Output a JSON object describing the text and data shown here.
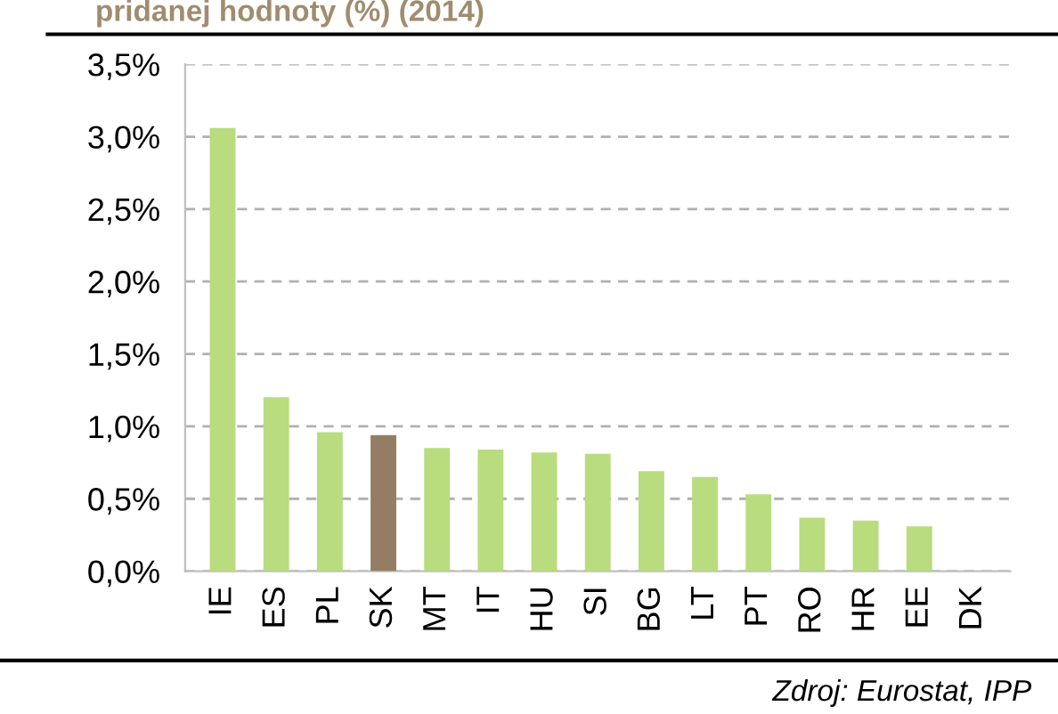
{
  "chart_data": {
    "type": "bar",
    "title": "pridanej hodnoty (%) (2014)",
    "categories": [
      "IE",
      "ES",
      "PL",
      "SK",
      "MT",
      "IT",
      "HU",
      "SI",
      "BG",
      "LT",
      "PT",
      "RO",
      "HR",
      "EE",
      "DK"
    ],
    "values": [
      3.06,
      1.2,
      0.96,
      0.94,
      0.85,
      0.84,
      0.82,
      0.81,
      0.69,
      0.65,
      0.53,
      0.37,
      0.35,
      0.31,
      0.0
    ],
    "colors": [
      "#b8dc7e",
      "#b8dc7e",
      "#b8dc7e",
      "#957d63",
      "#b8dc7e",
      "#b8dc7e",
      "#b8dc7e",
      "#b8dc7e",
      "#b8dc7e",
      "#b8dc7e",
      "#b8dc7e",
      "#b8dc7e",
      "#b8dc7e",
      "#b8dc7e",
      "#b8dc7e"
    ],
    "ylim": [
      0,
      3.5
    ],
    "yticks": [
      {
        "value": 0,
        "label": "0,0%"
      },
      {
        "value": 0.5,
        "label": "0,5%"
      },
      {
        "value": 1,
        "label": "1,0%"
      },
      {
        "value": 1.5,
        "label": "1,5%"
      },
      {
        "value": 2,
        "label": "2,0%"
      },
      {
        "value": 2.5,
        "label": "2,5%"
      },
      {
        "value": 3,
        "label": "3,0%"
      },
      {
        "value": 3.5,
        "label": "3,5%"
      }
    ],
    "grid": "y",
    "annotations": [
      "Zdroj: Eurostat, IPP"
    ]
  }
}
